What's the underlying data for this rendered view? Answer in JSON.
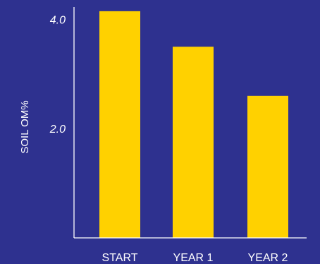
{
  "chart_data": {
    "type": "bar",
    "categories": [
      "START",
      "YEAR 1",
      "YEAR 2"
    ],
    "values": [
      4.15,
      3.5,
      2.6
    ],
    "ylabel": "SOIL OM%",
    "xlabel": "",
    "yticks": [
      {
        "value": 4.0,
        "label": "4.0"
      },
      {
        "value": 2.0,
        "label": "2.0"
      }
    ],
    "ylim": [
      0,
      4.2
    ],
    "grid": false,
    "legend": "none"
  },
  "colors": {
    "background": "#2e318f",
    "bar": "#ffd100",
    "axis": "#ffffff",
    "text": "#ffffff"
  }
}
